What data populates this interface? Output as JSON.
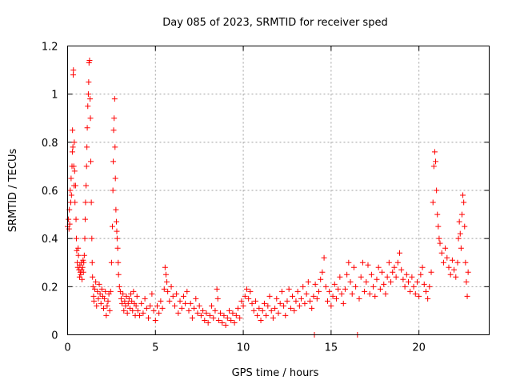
{
  "chart_data": {
    "type": "scatter",
    "title": "Day 085 of 2023, SRMTID for receiver sped",
    "xlabel": "GPS time / hours",
    "ylabel": "SRMTID / TECUs",
    "xlim": [
      0,
      24
    ],
    "ylim": [
      0,
      1.2
    ],
    "x_ticks": [
      0,
      5,
      10,
      15,
      20
    ],
    "x_tick_labels": [
      "0",
      "5",
      "10",
      "15",
      "20"
    ],
    "y_ticks": [
      0,
      0.2,
      0.4,
      0.6,
      0.8,
      1,
      1.2
    ],
    "y_tick_labels": [
      "0",
      "0.2",
      "0.4",
      "0.6",
      "0.8",
      "1",
      "1.2"
    ],
    "grid": true,
    "marker": "plus",
    "color": "#ff0000",
    "series": [
      {
        "name": "SRMTID",
        "points": [
          [
            0.0,
            0.45
          ],
          [
            0.05,
            0.48
          ],
          [
            0.08,
            0.44
          ],
          [
            0.1,
            0.52
          ],
          [
            0.12,
            0.46
          ],
          [
            0.15,
            0.6
          ],
          [
            0.18,
            0.55
          ],
          [
            0.2,
            0.65
          ],
          [
            0.22,
            0.58
          ],
          [
            0.25,
            0.7
          ],
          [
            0.27,
            0.76
          ],
          [
            0.28,
            0.85
          ],
          [
            0.3,
            0.78
          ],
          [
            0.32,
            1.08
          ],
          [
            0.33,
            1.1
          ],
          [
            0.35,
            0.7
          ],
          [
            0.37,
            0.62
          ],
          [
            0.38,
            0.8
          ],
          [
            0.4,
            0.68
          ],
          [
            0.42,
            0.55
          ],
          [
            0.45,
            0.62
          ],
          [
            0.48,
            0.48
          ],
          [
            0.5,
            0.4
          ],
          [
            0.52,
            0.35
          ],
          [
            0.55,
            0.3
          ],
          [
            0.58,
            0.28
          ],
          [
            0.6,
            0.36
          ],
          [
            0.62,
            0.33
          ],
          [
            0.65,
            0.27
          ],
          [
            0.68,
            0.24
          ],
          [
            0.7,
            0.29
          ],
          [
            0.72,
            0.26
          ],
          [
            0.75,
            0.25
          ],
          [
            0.78,
            0.3
          ],
          [
            0.8,
            0.27
          ],
          [
            0.82,
            0.23
          ],
          [
            0.85,
            0.28
          ],
          [
            0.88,
            0.31
          ],
          [
            0.9,
            0.26
          ],
          [
            0.92,
            0.3
          ],
          [
            0.95,
            0.33
          ],
          [
            0.98,
            0.4
          ],
          [
            1.0,
            0.48
          ],
          [
            1.02,
            0.55
          ],
          [
            1.05,
            0.62
          ],
          [
            1.08,
            0.7
          ],
          [
            1.1,
            0.78
          ],
          [
            1.12,
            0.86
          ],
          [
            1.15,
            0.95
          ],
          [
            1.18,
            1.0
          ],
          [
            1.2,
            1.05
          ],
          [
            1.22,
            1.13
          ],
          [
            1.25,
            1.14
          ],
          [
            1.28,
            0.98
          ],
          [
            1.3,
            0.9
          ],
          [
            1.32,
            0.72
          ],
          [
            1.35,
            0.55
          ],
          [
            1.38,
            0.4
          ],
          [
            1.4,
            0.3
          ],
          [
            1.42,
            0.24
          ],
          [
            1.45,
            0.2
          ],
          [
            1.48,
            0.16
          ],
          [
            1.5,
            0.14
          ],
          [
            1.55,
            0.19
          ],
          [
            1.6,
            0.22
          ],
          [
            1.65,
            0.12
          ],
          [
            1.7,
            0.18
          ],
          [
            1.75,
            0.15
          ],
          [
            1.8,
            0.21
          ],
          [
            1.85,
            0.17
          ],
          [
            1.9,
            0.13
          ],
          [
            1.95,
            0.19
          ],
          [
            2.0,
            0.16
          ],
          [
            2.05,
            0.11
          ],
          [
            2.1,
            0.15
          ],
          [
            2.15,
            0.18
          ],
          [
            2.2,
            0.08
          ],
          [
            2.25,
            0.12
          ],
          [
            2.3,
            0.14
          ],
          [
            2.35,
            0.17
          ],
          [
            2.4,
            0.1
          ],
          [
            2.45,
            0.18
          ],
          [
            2.5,
            0.3
          ],
          [
            2.55,
            0.45
          ],
          [
            2.58,
            0.6
          ],
          [
            2.6,
            0.72
          ],
          [
            2.62,
            0.85
          ],
          [
            2.65,
            0.9
          ],
          [
            2.68,
            0.98
          ],
          [
            2.7,
            0.78
          ],
          [
            2.72,
            0.65
          ],
          [
            2.75,
            0.52
          ],
          [
            2.78,
            0.47
          ],
          [
            2.8,
            0.43
          ],
          [
            2.82,
            0.4
          ],
          [
            2.85,
            0.36
          ],
          [
            2.88,
            0.3
          ],
          [
            2.9,
            0.25
          ],
          [
            2.95,
            0.2
          ],
          [
            3.0,
            0.18
          ],
          [
            3.05,
            0.15
          ],
          [
            3.1,
            0.13
          ],
          [
            3.15,
            0.17
          ],
          [
            3.2,
            0.1
          ],
          [
            3.25,
            0.14
          ],
          [
            3.3,
            0.12
          ],
          [
            3.35,
            0.16
          ],
          [
            3.4,
            0.09
          ],
          [
            3.45,
            0.13
          ],
          [
            3.5,
            0.15
          ],
          [
            3.55,
            0.11
          ],
          [
            3.6,
            0.17
          ],
          [
            3.65,
            0.14
          ],
          [
            3.7,
            0.1
          ],
          [
            3.75,
            0.18
          ],
          [
            3.8,
            0.13
          ],
          [
            3.85,
            0.08
          ],
          [
            3.9,
            0.12
          ],
          [
            3.95,
            0.16
          ],
          [
            4.0,
            0.1
          ],
          [
            4.1,
            0.08
          ],
          [
            4.2,
            0.13
          ],
          [
            4.3,
            0.09
          ],
          [
            4.4,
            0.15
          ],
          [
            4.5,
            0.11
          ],
          [
            4.6,
            0.07
          ],
          [
            4.7,
            0.12
          ],
          [
            4.8,
            0.17
          ],
          [
            4.9,
            0.1
          ],
          [
            5.0,
            0.06
          ],
          [
            5.1,
            0.12
          ],
          [
            5.2,
            0.09
          ],
          [
            5.3,
            0.14
          ],
          [
            5.4,
            0.11
          ],
          [
            5.5,
            0.19
          ],
          [
            5.55,
            0.28
          ],
          [
            5.6,
            0.25
          ],
          [
            5.65,
            0.22
          ],
          [
            5.7,
            0.18
          ],
          [
            5.8,
            0.14
          ],
          [
            5.9,
            0.2
          ],
          [
            6.0,
            0.16
          ],
          [
            6.1,
            0.12
          ],
          [
            6.2,
            0.17
          ],
          [
            6.3,
            0.09
          ],
          [
            6.4,
            0.14
          ],
          [
            6.5,
            0.11
          ],
          [
            6.6,
            0.16
          ],
          [
            6.7,
            0.13
          ],
          [
            6.8,
            0.18
          ],
          [
            6.9,
            0.1
          ],
          [
            7.0,
            0.13
          ],
          [
            7.1,
            0.07
          ],
          [
            7.2,
            0.11
          ],
          [
            7.3,
            0.15
          ],
          [
            7.4,
            0.09
          ],
          [
            7.5,
            0.12
          ],
          [
            7.6,
            0.08
          ],
          [
            7.7,
            0.1
          ],
          [
            7.8,
            0.06
          ],
          [
            7.9,
            0.09
          ],
          [
            8.0,
            0.05
          ],
          [
            8.1,
            0.08
          ],
          [
            8.2,
            0.12
          ],
          [
            8.3,
            0.07
          ],
          [
            8.4,
            0.1
          ],
          [
            8.5,
            0.19
          ],
          [
            8.55,
            0.15
          ],
          [
            8.6,
            0.06
          ],
          [
            8.7,
            0.09
          ],
          [
            8.8,
            0.05
          ],
          [
            8.9,
            0.08
          ],
          [
            9.0,
            0.04
          ],
          [
            9.1,
            0.07
          ],
          [
            9.2,
            0.1
          ],
          [
            9.3,
            0.06
          ],
          [
            9.4,
            0.09
          ],
          [
            9.5,
            0.05
          ],
          [
            9.6,
            0.08
          ],
          [
            9.7,
            0.11
          ],
          [
            9.8,
            0.07
          ],
          [
            9.9,
            0.14
          ],
          [
            10.0,
            0.12
          ],
          [
            10.1,
            0.16
          ],
          [
            10.2,
            0.19
          ],
          [
            10.3,
            0.15
          ],
          [
            10.4,
            0.18
          ],
          [
            10.5,
            0.13
          ],
          [
            10.6,
            0.1
          ],
          [
            10.7,
            0.14
          ],
          [
            10.8,
            0.08
          ],
          [
            10.9,
            0.11
          ],
          [
            11.0,
            0.06
          ],
          [
            11.1,
            0.1
          ],
          [
            11.2,
            0.13
          ],
          [
            11.3,
            0.08
          ],
          [
            11.4,
            0.12
          ],
          [
            11.5,
            0.16
          ],
          [
            11.6,
            0.1
          ],
          [
            11.7,
            0.07
          ],
          [
            11.8,
            0.11
          ],
          [
            11.9,
            0.15
          ],
          [
            12.0,
            0.09
          ],
          [
            12.1,
            0.13
          ],
          [
            12.2,
            0.18
          ],
          [
            12.3,
            0.12
          ],
          [
            12.4,
            0.08
          ],
          [
            12.5,
            0.14
          ],
          [
            12.6,
            0.19
          ],
          [
            12.7,
            0.11
          ],
          [
            12.8,
            0.16
          ],
          [
            12.9,
            0.1
          ],
          [
            13.0,
            0.14
          ],
          [
            13.1,
            0.18
          ],
          [
            13.2,
            0.12
          ],
          [
            13.3,
            0.15
          ],
          [
            13.4,
            0.2
          ],
          [
            13.5,
            0.13
          ],
          [
            13.6,
            0.17
          ],
          [
            13.7,
            0.22
          ],
          [
            13.8,
            0.14
          ],
          [
            13.9,
            0.11
          ],
          [
            14.0,
            0.16
          ],
          [
            14.05,
            0.0
          ],
          [
            14.1,
            0.21
          ],
          [
            14.2,
            0.15
          ],
          [
            14.3,
            0.18
          ],
          [
            14.4,
            0.23
          ],
          [
            14.5,
            0.26
          ],
          [
            14.6,
            0.32
          ],
          [
            14.7,
            0.2
          ],
          [
            14.8,
            0.14
          ],
          [
            14.9,
            0.18
          ],
          [
            15.0,
            0.12
          ],
          [
            15.1,
            0.16
          ],
          [
            15.2,
            0.21
          ],
          [
            15.3,
            0.15
          ],
          [
            15.4,
            0.19
          ],
          [
            15.5,
            0.24
          ],
          [
            15.6,
            0.17
          ],
          [
            15.7,
            0.13
          ],
          [
            15.8,
            0.19
          ],
          [
            15.9,
            0.25
          ],
          [
            16.0,
            0.3
          ],
          [
            16.1,
            0.22
          ],
          [
            16.2,
            0.17
          ],
          [
            16.3,
            0.28
          ],
          [
            16.4,
            0.2
          ],
          [
            16.5,
            0.0
          ],
          [
            16.6,
            0.15
          ],
          [
            16.7,
            0.24
          ],
          [
            16.8,
            0.3
          ],
          [
            16.9,
            0.18
          ],
          [
            17.0,
            0.22
          ],
          [
            17.1,
            0.29
          ],
          [
            17.2,
            0.17
          ],
          [
            17.3,
            0.25
          ],
          [
            17.4,
            0.2
          ],
          [
            17.5,
            0.16
          ],
          [
            17.6,
            0.23
          ],
          [
            17.7,
            0.28
          ],
          [
            17.8,
            0.19
          ],
          [
            17.9,
            0.26
          ],
          [
            18.0,
            0.21
          ],
          [
            18.1,
            0.17
          ],
          [
            18.2,
            0.24
          ],
          [
            18.3,
            0.3
          ],
          [
            18.4,
            0.22
          ],
          [
            18.5,
            0.26
          ],
          [
            18.6,
            0.28
          ],
          [
            18.7,
            0.24
          ],
          [
            18.8,
            0.3
          ],
          [
            18.9,
            0.34
          ],
          [
            19.0,
            0.27
          ],
          [
            19.1,
            0.23
          ],
          [
            19.2,
            0.2
          ],
          [
            19.3,
            0.25
          ],
          [
            19.4,
            0.22
          ],
          [
            19.5,
            0.18
          ],
          [
            19.6,
            0.24
          ],
          [
            19.7,
            0.2
          ],
          [
            19.8,
            0.17
          ],
          [
            19.9,
            0.22
          ],
          [
            20.0,
            0.16
          ],
          [
            20.1,
            0.25
          ],
          [
            20.2,
            0.28
          ],
          [
            20.3,
            0.21
          ],
          [
            20.4,
            0.18
          ],
          [
            20.5,
            0.15
          ],
          [
            20.6,
            0.2
          ],
          [
            20.7,
            0.26
          ],
          [
            20.8,
            0.55
          ],
          [
            20.85,
            0.7
          ],
          [
            20.9,
            0.76
          ],
          [
            20.95,
            0.72
          ],
          [
            21.0,
            0.6
          ],
          [
            21.05,
            0.5
          ],
          [
            21.1,
            0.45
          ],
          [
            21.15,
            0.4
          ],
          [
            21.2,
            0.38
          ],
          [
            21.3,
            0.34
          ],
          [
            21.4,
            0.3
          ],
          [
            21.5,
            0.36
          ],
          [
            21.6,
            0.32
          ],
          [
            21.7,
            0.28
          ],
          [
            21.8,
            0.25
          ],
          [
            21.9,
            0.31
          ],
          [
            22.0,
            0.27
          ],
          [
            22.1,
            0.24
          ],
          [
            22.2,
            0.3
          ],
          [
            22.25,
            0.4
          ],
          [
            22.3,
            0.47
          ],
          [
            22.35,
            0.42
          ],
          [
            22.4,
            0.36
          ],
          [
            22.45,
            0.5
          ],
          [
            22.5,
            0.58
          ],
          [
            22.55,
            0.55
          ],
          [
            22.6,
            0.45
          ],
          [
            22.65,
            0.3
          ],
          [
            22.7,
            0.22
          ],
          [
            22.75,
            0.16
          ],
          [
            22.8,
            0.26
          ]
        ]
      }
    ]
  }
}
